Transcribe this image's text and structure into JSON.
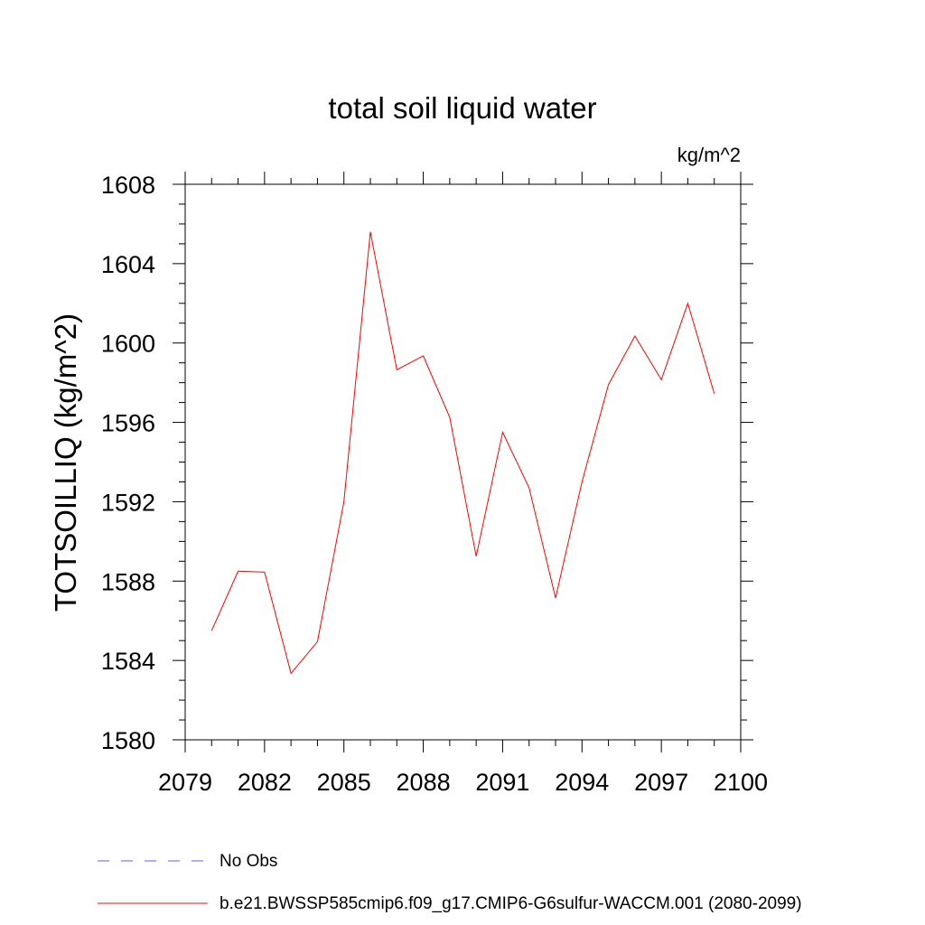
{
  "chart_data": {
    "type": "line",
    "title": "total soil liquid water",
    "units_label": "kg/m^2",
    "ylabel": "TOTSOILLIQ  (kg/m^2)",
    "xlabel": "",
    "xlim": [
      2079,
      2100
    ],
    "ylim": [
      1580,
      1608
    ],
    "x_ticks": [
      2079,
      2082,
      2085,
      2088,
      2091,
      2094,
      2097,
      2100
    ],
    "y_ticks": [
      1580,
      1584,
      1588,
      1592,
      1596,
      1600,
      1604,
      1608
    ],
    "grid": false,
    "legend_placement": "bottom",
    "legend": [
      {
        "name": "No Obs",
        "color": "#6a5acd",
        "style": "dashed"
      },
      {
        "name": "b.e21.BWSSP585cmip6.f09_g17.CMIP6-G6sulfur-WACCM.001 (2080-2099)",
        "color": "#ff0000",
        "style": "solid"
      }
    ],
    "series": [
      {
        "name": "b.e21.BWSSP585cmip6.f09_g17.CMIP6-G6sulfur-WACCM.001 (2080-2099)",
        "color": "#ff0000",
        "x": [
          2080,
          2081,
          2082,
          2083,
          2084,
          2085,
          2086,
          2087,
          2088,
          2089,
          2090,
          2091,
          2092,
          2093,
          2094,
          2095,
          2096,
          2097,
          2098,
          2099
        ],
        "values": [
          1585.5,
          1588.5,
          1588.45,
          1583.35,
          1584.95,
          1592.0,
          1605.6,
          1598.65,
          1599.35,
          1596.25,
          1589.25,
          1595.5,
          1592.7,
          1587.15,
          1593.0,
          1597.9,
          1600.35,
          1598.15,
          1602.0,
          1597.45
        ]
      }
    ]
  }
}
